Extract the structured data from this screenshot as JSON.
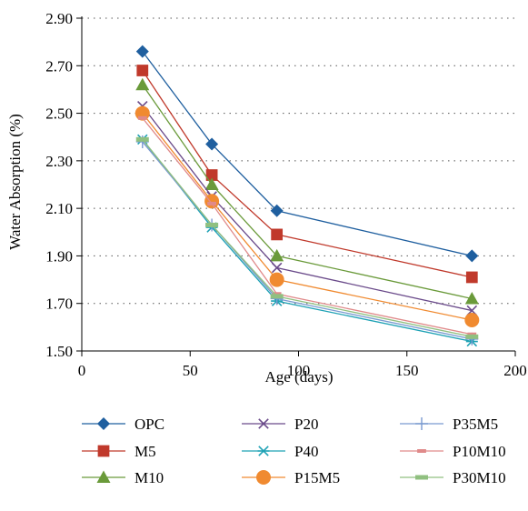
{
  "chart_data": {
    "type": "line",
    "title": "",
    "xlabel": "Age (days)",
    "ylabel": "Water Absorption (%)",
    "xlim": [
      0,
      200
    ],
    "ylim": [
      1.5,
      2.9
    ],
    "xticks": [
      "0",
      "50",
      "100",
      "150",
      "200"
    ],
    "yticks": [
      "1.50",
      "1.70",
      "1.90",
      "2.10",
      "2.30",
      "2.50",
      "2.70",
      "2.90"
    ],
    "grid": "horizontal dotted",
    "legend_position": "bottom",
    "x": [
      28,
      60,
      90,
      180
    ],
    "series": [
      {
        "name": "OPC",
        "values": [
          2.76,
          2.37,
          2.09,
          1.9
        ],
        "color": "#1f5f9f",
        "marker": "diamond"
      },
      {
        "name": "M5",
        "values": [
          2.68,
          2.24,
          1.99,
          1.81
        ],
        "color": "#c0392b",
        "marker": "square"
      },
      {
        "name": "M10",
        "values": [
          2.62,
          2.2,
          1.9,
          1.72
        ],
        "color": "#6a9a3a",
        "marker": "triangle"
      },
      {
        "name": "P20",
        "values": [
          2.53,
          2.15,
          1.85,
          1.67
        ],
        "color": "#6a4a8a",
        "marker": "x"
      },
      {
        "name": "P40",
        "values": [
          2.39,
          2.02,
          1.71,
          1.54
        ],
        "color": "#1fa2b5",
        "marker": "asterisk"
      },
      {
        "name": "P15M5",
        "values": [
          2.5,
          2.13,
          1.8,
          1.63
        ],
        "color": "#f08a30",
        "marker": "circle"
      },
      {
        "name": "P35M5",
        "values": [
          2.38,
          2.03,
          1.72,
          1.55
        ],
        "color": "#7a9ad0",
        "marker": "plus"
      },
      {
        "name": "P10M10",
        "values": [
          2.48,
          2.12,
          1.74,
          1.57
        ],
        "color": "#e08a8a",
        "marker": "dash"
      },
      {
        "name": "P30M10",
        "values": [
          2.39,
          2.03,
          1.73,
          1.56
        ],
        "color": "#90c080",
        "marker": "bar"
      }
    ]
  }
}
